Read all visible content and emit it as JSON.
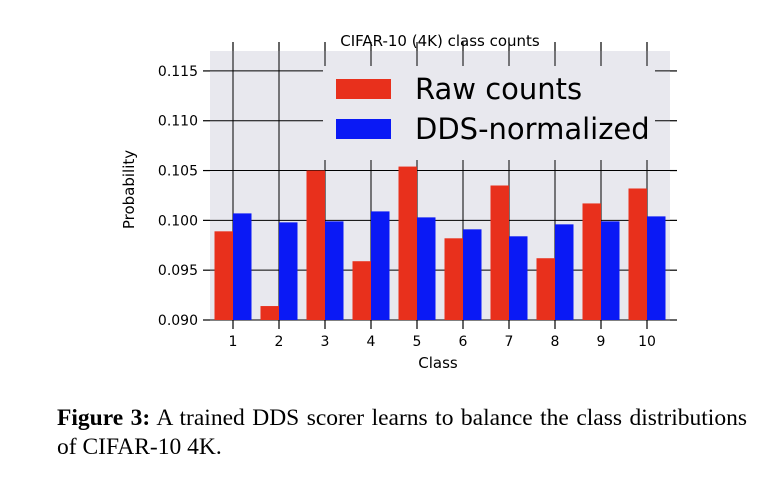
{
  "chart_data": {
    "type": "bar",
    "title": "CIFAR-10 (4K) class counts",
    "xlabel": "Class",
    "ylabel": "Probability",
    "categories": [
      "1",
      "2",
      "3",
      "4",
      "5",
      "6",
      "7",
      "8",
      "9",
      "10"
    ],
    "ylim": [
      0.09,
      0.117
    ],
    "yticks": [
      "0.090",
      "0.095",
      "0.100",
      "0.105",
      "0.110",
      "0.115"
    ],
    "grid": true,
    "legend_position": "top-right",
    "series": [
      {
        "name": "Raw counts",
        "color": "#e8301c",
        "values": [
          0.0989,
          0.0914,
          0.105,
          0.0959,
          0.1054,
          0.0982,
          0.1035,
          0.0962,
          0.1017,
          0.1032
        ]
      },
      {
        "name": "DDS-normalized",
        "color": "#0a19f5",
        "values": [
          0.1007,
          0.0998,
          0.0999,
          0.1009,
          0.1003,
          0.0991,
          0.0984,
          0.0996,
          0.0999,
          0.1004
        ]
      }
    ]
  },
  "caption": {
    "label": "Figure 3:",
    "text": "A trained DDS scorer learns to balance the class distributions of CIFAR-10 4K."
  },
  "colors": {
    "plot_background": "#e8e8ee",
    "grid": "#000000"
  }
}
